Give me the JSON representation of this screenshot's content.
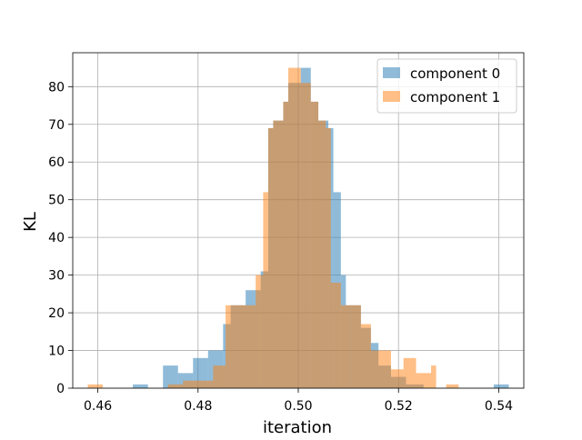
{
  "chart_data": {
    "type": "histogram",
    "title": "",
    "xlabel": "iteration",
    "ylabel": "KL",
    "xlim": [
      0.455,
      0.545
    ],
    "ylim": [
      0,
      89
    ],
    "xticks": [
      0.46,
      0.48,
      0.5,
      0.52,
      0.54
    ],
    "xtick_labels": [
      "0.46",
      "0.48",
      "0.50",
      "0.52",
      "0.54"
    ],
    "yticks": [
      0,
      10,
      20,
      30,
      40,
      50,
      60,
      70,
      80
    ],
    "ytick_labels": [
      "0",
      "10",
      "20",
      "30",
      "40",
      "50",
      "60",
      "70",
      "80"
    ],
    "grid": true,
    "legend_position": "top-right",
    "series": [
      {
        "name": "component 0",
        "color": "#1f77b4",
        "alpha": 0.5,
        "bins": [
          [
            0.467,
            0.47,
            1
          ],
          [
            0.473,
            0.476,
            6
          ],
          [
            0.476,
            0.479,
            4
          ],
          [
            0.479,
            0.482,
            8
          ],
          [
            0.482,
            0.485,
            10
          ],
          [
            0.485,
            0.4865,
            17
          ],
          [
            0.4865,
            0.4895,
            22
          ],
          [
            0.4895,
            0.4925,
            26
          ],
          [
            0.4925,
            0.494,
            31
          ],
          [
            0.494,
            0.495,
            69
          ],
          [
            0.495,
            0.497,
            71
          ],
          [
            0.497,
            0.498,
            76
          ],
          [
            0.498,
            0.5005,
            81
          ],
          [
            0.5005,
            0.5025,
            85
          ],
          [
            0.5025,
            0.504,
            76
          ],
          [
            0.504,
            0.506,
            71
          ],
          [
            0.506,
            0.507,
            69
          ],
          [
            0.507,
            0.5085,
            52
          ],
          [
            0.5085,
            0.5095,
            30
          ],
          [
            0.5095,
            0.5125,
            22
          ],
          [
            0.5125,
            0.5145,
            16
          ],
          [
            0.5145,
            0.516,
            12
          ],
          [
            0.516,
            0.5185,
            6
          ],
          [
            0.5185,
            0.5215,
            3
          ],
          [
            0.5215,
            0.525,
            1
          ],
          [
            0.539,
            0.542,
            1
          ]
        ]
      },
      {
        "name": "component 1",
        "color": "#ff7f0e",
        "alpha": 0.5,
        "bins": [
          [
            0.458,
            0.461,
            1
          ],
          [
            0.474,
            0.477,
            1
          ],
          [
            0.477,
            0.4805,
            2
          ],
          [
            0.4805,
            0.483,
            2
          ],
          [
            0.483,
            0.4855,
            6
          ],
          [
            0.4855,
            0.4875,
            22
          ],
          [
            0.4875,
            0.4915,
            22
          ],
          [
            0.4915,
            0.493,
            30
          ],
          [
            0.493,
            0.494,
            52
          ],
          [
            0.494,
            0.495,
            69
          ],
          [
            0.495,
            0.497,
            71
          ],
          [
            0.497,
            0.498,
            76
          ],
          [
            0.498,
            0.5005,
            85
          ],
          [
            0.5005,
            0.5025,
            81
          ],
          [
            0.5025,
            0.504,
            76
          ],
          [
            0.504,
            0.5055,
            71
          ],
          [
            0.5055,
            0.5065,
            69
          ],
          [
            0.5065,
            0.5085,
            28
          ],
          [
            0.5085,
            0.5105,
            22
          ],
          [
            0.5105,
            0.5125,
            22
          ],
          [
            0.5125,
            0.5145,
            17
          ],
          [
            0.5145,
            0.5185,
            10
          ],
          [
            0.5185,
            0.521,
            5
          ],
          [
            0.521,
            0.5235,
            8
          ],
          [
            0.5235,
            0.5265,
            4
          ],
          [
            0.5265,
            0.5275,
            6
          ],
          [
            0.5295,
            0.532,
            1
          ]
        ]
      }
    ]
  }
}
